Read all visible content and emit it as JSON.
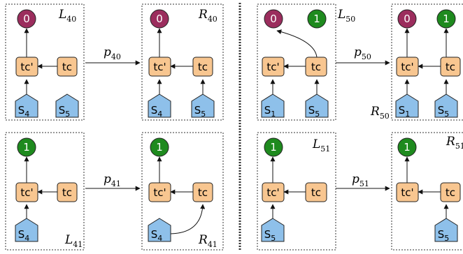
{
  "colors": {
    "circle_purple": "#9b2d5d",
    "circle_green": "#1e8a1e",
    "box_orange": "#f8c690",
    "house_blue": "#8ec0ea",
    "stroke": "#222222"
  },
  "labels": {
    "zero": "0",
    "one": "1",
    "tc": "tc",
    "tcp": "tc'",
    "S": "S",
    "sub4": "4",
    "sub5": "5",
    "sub1": "1",
    "L": "L",
    "R": "R",
    "p": "p",
    "i40": "40",
    "i41": "41",
    "i50": "50",
    "i51": "51"
  }
}
